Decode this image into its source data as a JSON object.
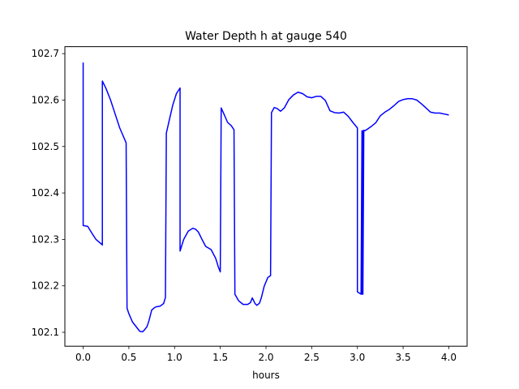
{
  "chart_data": {
    "type": "line",
    "title": "Water Depth h at gauge 540",
    "xlabel": "hours",
    "ylabel": "",
    "xlim": [
      -0.2,
      4.2
    ],
    "ylim": [
      102.07,
      102.715
    ],
    "xticks": [
      0.0,
      0.5,
      1.0,
      1.5,
      2.0,
      2.5,
      3.0,
      3.5,
      4.0
    ],
    "xtick_labels": [
      "0.0",
      "0.5",
      "1.0",
      "1.5",
      "2.0",
      "2.5",
      "3.0",
      "3.5",
      "4.0"
    ],
    "yticks": [
      102.1,
      102.2,
      102.3,
      102.4,
      102.5,
      102.6,
      102.7
    ],
    "ytick_labels": [
      "102.1",
      "102.2",
      "102.3",
      "102.4",
      "102.5",
      "102.6",
      "102.7"
    ],
    "grid": false,
    "series": [
      {
        "color": "#0000ff",
        "x": [
          0.0,
          0.0,
          0.05,
          0.1,
          0.14,
          0.2,
          0.21,
          0.21,
          0.25,
          0.3,
          0.35,
          0.4,
          0.47,
          0.48,
          0.5,
          0.54,
          0.58,
          0.62,
          0.65,
          0.67,
          0.69,
          0.7,
          0.72,
          0.75,
          0.78,
          0.8,
          0.84,
          0.88,
          0.9,
          0.91,
          0.94,
          0.98,
          1.02,
          1.06,
          1.06,
          1.1,
          1.15,
          1.2,
          1.23,
          1.26,
          1.3,
          1.34,
          1.4,
          1.45,
          1.48,
          1.5,
          1.51,
          1.54,
          1.58,
          1.62,
          1.65,
          1.66,
          1.7,
          1.75,
          1.8,
          1.83,
          1.85,
          1.88,
          1.9,
          1.93,
          1.95,
          1.98,
          2.02,
          2.05,
          2.06,
          2.09,
          2.12,
          2.16,
          2.2,
          2.25,
          2.3,
          2.35,
          2.4,
          2.45,
          2.5,
          2.55,
          2.6,
          2.65,
          2.7,
          2.75,
          2.8,
          2.85,
          2.9,
          2.95,
          3.0,
          3.0,
          3.04,
          3.05,
          3.05,
          3.06,
          3.06,
          3.07,
          3.07,
          3.08,
          3.1,
          3.15,
          3.2,
          3.25,
          3.3,
          3.35,
          3.4,
          3.45,
          3.5,
          3.55,
          3.6,
          3.65,
          3.7,
          3.75,
          3.8,
          3.85,
          3.9,
          3.95,
          4.0
        ],
        "y": [
          102.681,
          102.33,
          102.328,
          102.312,
          102.3,
          102.29,
          102.288,
          102.641,
          102.625,
          102.6,
          102.57,
          102.54,
          102.508,
          102.152,
          102.14,
          102.122,
          102.112,
          102.102,
          102.101,
          102.105,
          102.11,
          102.113,
          102.125,
          102.148,
          102.153,
          102.155,
          102.156,
          102.162,
          102.175,
          102.529,
          102.555,
          102.589,
          102.614,
          102.626,
          102.275,
          102.3,
          102.318,
          102.324,
          102.322,
          102.316,
          102.3,
          102.285,
          102.278,
          102.259,
          102.24,
          102.23,
          102.583,
          102.57,
          102.552,
          102.545,
          102.536,
          102.182,
          102.168,
          102.16,
          102.16,
          102.164,
          102.174,
          102.162,
          102.158,
          102.163,
          102.175,
          102.199,
          102.218,
          102.222,
          102.573,
          102.584,
          102.582,
          102.576,
          102.583,
          102.601,
          102.611,
          102.617,
          102.614,
          102.607,
          102.605,
          102.608,
          102.608,
          102.599,
          102.577,
          102.573,
          102.572,
          102.574,
          102.565,
          102.552,
          102.54,
          102.187,
          102.182,
          102.534,
          102.182,
          102.534,
          102.182,
          102.535,
          102.535,
          102.534,
          102.536,
          102.543,
          102.551,
          102.566,
          102.574,
          102.58,
          102.588,
          102.597,
          102.601,
          102.603,
          102.603,
          102.6,
          102.592,
          102.583,
          102.574,
          102.572,
          102.572,
          102.57,
          102.568
        ]
      }
    ]
  }
}
